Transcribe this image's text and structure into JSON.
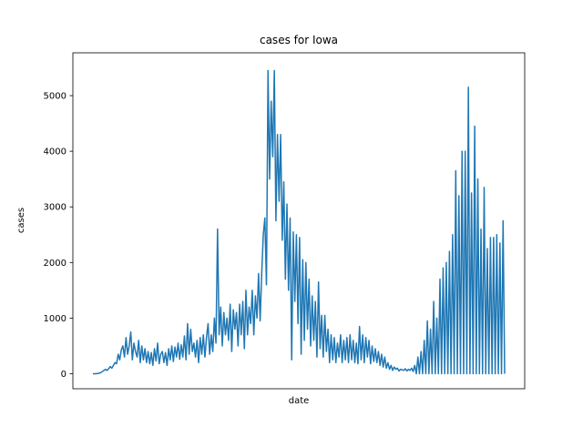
{
  "chart_data": {
    "type": "line",
    "title": "cases for Iowa",
    "xlabel": "date",
    "ylabel": "cases",
    "ylim": [
      -270,
      5770
    ],
    "yticks": [
      0,
      1000,
      2000,
      3000,
      4000,
      5000
    ],
    "ytick_labels": [
      "0",
      "1000",
      "2000",
      "3000",
      "4000",
      "5000"
    ],
    "grid": false,
    "color": "#1f77b4",
    "series": [
      {
        "points": [
          [
            0,
            0
          ],
          [
            2,
            0
          ],
          [
            4,
            0
          ],
          [
            6,
            5
          ],
          [
            8,
            10
          ],
          [
            10,
            20
          ],
          [
            12,
            40
          ],
          [
            14,
            60
          ],
          [
            16,
            80
          ],
          [
            18,
            60
          ],
          [
            20,
            90
          ],
          [
            22,
            130
          ],
          [
            24,
            100
          ],
          [
            26,
            150
          ],
          [
            28,
            200
          ],
          [
            30,
            180
          ],
          [
            32,
            350
          ],
          [
            34,
            250
          ],
          [
            36,
            430
          ],
          [
            38,
            500
          ],
          [
            40,
            300
          ],
          [
            42,
            650
          ],
          [
            44,
            350
          ],
          [
            46,
            500
          ],
          [
            48,
            750
          ],
          [
            50,
            250
          ],
          [
            52,
            550
          ],
          [
            54,
            400
          ],
          [
            56,
            300
          ],
          [
            58,
            600
          ],
          [
            60,
            200
          ],
          [
            62,
            500
          ],
          [
            64,
            250
          ],
          [
            66,
            450
          ],
          [
            68,
            200
          ],
          [
            70,
            400
          ],
          [
            72,
            180
          ],
          [
            74,
            380
          ],
          [
            76,
            150
          ],
          [
            78,
            450
          ],
          [
            80,
            230
          ],
          [
            82,
            550
          ],
          [
            84,
            180
          ],
          [
            86,
            350
          ],
          [
            88,
            400
          ],
          [
            90,
            200
          ],
          [
            92,
            380
          ],
          [
            94,
            150
          ],
          [
            96,
            450
          ],
          [
            98,
            250
          ],
          [
            100,
            500
          ],
          [
            102,
            220
          ],
          [
            104,
            480
          ],
          [
            106,
            300
          ],
          [
            108,
            550
          ],
          [
            110,
            260
          ],
          [
            112,
            520
          ],
          [
            114,
            300
          ],
          [
            116,
            680
          ],
          [
            118,
            250
          ],
          [
            120,
            900
          ],
          [
            122,
            350
          ],
          [
            124,
            800
          ],
          [
            126,
            400
          ],
          [
            128,
            550
          ],
          [
            130,
            300
          ],
          [
            132,
            600
          ],
          [
            134,
            200
          ],
          [
            136,
            650
          ],
          [
            138,
            350
          ],
          [
            140,
            700
          ],
          [
            142,
            300
          ],
          [
            144,
            650
          ],
          [
            146,
            900
          ],
          [
            148,
            350
          ],
          [
            150,
            700
          ],
          [
            152,
            400
          ],
          [
            154,
            1000
          ],
          [
            156,
            550
          ],
          [
            158,
            2600
          ],
          [
            160,
            700
          ],
          [
            162,
            1200
          ],
          [
            164,
            500
          ],
          [
            166,
            1100
          ],
          [
            168,
            700
          ],
          [
            170,
            1000
          ],
          [
            172,
            600
          ],
          [
            174,
            1250
          ],
          [
            176,
            400
          ],
          [
            178,
            1150
          ],
          [
            180,
            800
          ],
          [
            182,
            1100
          ],
          [
            184,
            500
          ],
          [
            186,
            1250
          ],
          [
            188,
            700
          ],
          [
            190,
            1300
          ],
          [
            192,
            450
          ],
          [
            194,
            1500
          ],
          [
            196,
            700
          ],
          [
            198,
            1200
          ],
          [
            200,
            900
          ],
          [
            202,
            1500
          ],
          [
            204,
            700
          ],
          [
            206,
            1400
          ],
          [
            208,
            1000
          ],
          [
            210,
            1800
          ],
          [
            212,
            950
          ],
          [
            214,
            1800
          ],
          [
            216,
            2500
          ],
          [
            218,
            2800
          ],
          [
            220,
            1600
          ],
          [
            222,
            5450
          ],
          [
            224,
            3500
          ],
          [
            226,
            4900
          ],
          [
            228,
            3900
          ],
          [
            230,
            5450
          ],
          [
            232,
            2750
          ],
          [
            234,
            4300
          ],
          [
            236,
            3100
          ],
          [
            238,
            4300
          ],
          [
            240,
            2400
          ],
          [
            242,
            3450
          ],
          [
            244,
            1700
          ],
          [
            246,
            3050
          ],
          [
            248,
            1500
          ],
          [
            250,
            2800
          ],
          [
            252,
            250
          ],
          [
            254,
            2550
          ],
          [
            256,
            1300
          ],
          [
            258,
            2500
          ],
          [
            260,
            900
          ],
          [
            262,
            2450
          ],
          [
            264,
            350
          ],
          [
            266,
            2050
          ],
          [
            268,
            600
          ],
          [
            270,
            2000
          ],
          [
            272,
            800
          ],
          [
            274,
            1700
          ],
          [
            276,
            500
          ],
          [
            278,
            1400
          ],
          [
            280,
            600
          ],
          [
            282,
            1300
          ],
          [
            284,
            300
          ],
          [
            286,
            1650
          ],
          [
            288,
            450
          ],
          [
            290,
            1050
          ],
          [
            292,
            300
          ],
          [
            294,
            1050
          ],
          [
            296,
            400
          ],
          [
            298,
            800
          ],
          [
            300,
            200
          ],
          [
            302,
            700
          ],
          [
            304,
            250
          ],
          [
            306,
            650
          ],
          [
            308,
            200
          ],
          [
            310,
            550
          ],
          [
            312,
            300
          ],
          [
            314,
            700
          ],
          [
            316,
            200
          ],
          [
            318,
            600
          ],
          [
            320,
            250
          ],
          [
            322,
            650
          ],
          [
            324,
            200
          ],
          [
            326,
            700
          ],
          [
            328,
            250
          ],
          [
            330,
            600
          ],
          [
            332,
            200
          ],
          [
            334,
            550
          ],
          [
            336,
            180
          ],
          [
            338,
            850
          ],
          [
            340,
            250
          ],
          [
            342,
            700
          ],
          [
            344,
            200
          ],
          [
            346,
            650
          ],
          [
            348,
            300
          ],
          [
            350,
            600
          ],
          [
            352,
            180
          ],
          [
            354,
            500
          ],
          [
            356,
            220
          ],
          [
            358,
            450
          ],
          [
            360,
            200
          ],
          [
            362,
            400
          ],
          [
            364,
            150
          ],
          [
            366,
            350
          ],
          [
            368,
            120
          ],
          [
            370,
            300
          ],
          [
            372,
            100
          ],
          [
            374,
            200
          ],
          [
            376,
            80
          ],
          [
            378,
            150
          ],
          [
            380,
            60
          ],
          [
            382,
            120
          ],
          [
            384,
            80
          ],
          [
            386,
            100
          ],
          [
            388,
            50
          ],
          [
            390,
            80
          ],
          [
            392,
            70
          ],
          [
            394,
            60
          ],
          [
            396,
            90
          ],
          [
            398,
            50
          ],
          [
            400,
            80
          ],
          [
            402,
            60
          ],
          [
            404,
            100
          ],
          [
            406,
            40
          ],
          [
            408,
            150
          ],
          [
            410,
            0
          ],
          [
            412,
            300
          ],
          [
            414,
            0
          ],
          [
            416,
            400
          ],
          [
            418,
            0
          ],
          [
            420,
            600
          ],
          [
            422,
            0
          ],
          [
            424,
            950
          ],
          [
            426,
            0
          ],
          [
            428,
            800
          ],
          [
            430,
            0
          ],
          [
            432,
            1300
          ],
          [
            434,
            0
          ],
          [
            436,
            1000
          ],
          [
            438,
            0
          ],
          [
            440,
            1700
          ],
          [
            442,
            0
          ],
          [
            444,
            1900
          ],
          [
            446,
            0
          ],
          [
            448,
            2000
          ],
          [
            450,
            0
          ],
          [
            452,
            2200
          ],
          [
            454,
            0
          ],
          [
            456,
            2500
          ],
          [
            458,
            0
          ],
          [
            460,
            3650
          ],
          [
            462,
            0
          ],
          [
            464,
            3200
          ],
          [
            466,
            0
          ],
          [
            468,
            4000
          ],
          [
            470,
            0
          ],
          [
            472,
            4000
          ],
          [
            474,
            0
          ],
          [
            476,
            5150
          ],
          [
            478,
            0
          ],
          [
            480,
            3250
          ],
          [
            482,
            0
          ],
          [
            484,
            4450
          ],
          [
            486,
            0
          ],
          [
            488,
            3500
          ],
          [
            490,
            0
          ],
          [
            492,
            2600
          ],
          [
            494,
            0
          ],
          [
            496,
            3350
          ],
          [
            498,
            0
          ],
          [
            500,
            2250
          ],
          [
            502,
            0
          ],
          [
            504,
            2450
          ],
          [
            506,
            0
          ],
          [
            508,
            2450
          ],
          [
            510,
            0
          ],
          [
            512,
            2500
          ],
          [
            514,
            0
          ],
          [
            516,
            2350
          ],
          [
            518,
            0
          ],
          [
            520,
            2750
          ],
          [
            522,
            0
          ]
        ]
      }
    ]
  }
}
